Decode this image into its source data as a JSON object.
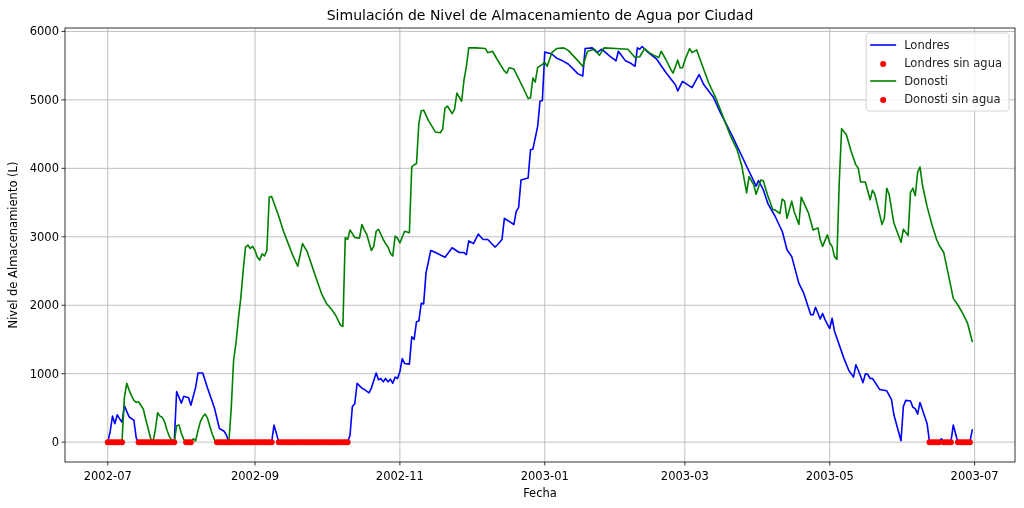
{
  "chart_data": {
    "type": "line",
    "title": "Simulación de Nivel de Almacenamiento de Agua por Ciudad",
    "xlabel": "Fecha",
    "ylabel": "Nivel de Almacenamiento (L)",
    "xlim": [
      "2002-06-13",
      "2003-07-18"
    ],
    "xticks": [
      "2002-07",
      "2002-09",
      "2002-11",
      "2003-01",
      "2003-03",
      "2003-05",
      "2003-07"
    ],
    "ylim": [
      -290,
      6050
    ],
    "yticks": [
      0,
      1000,
      2000,
      3000,
      4000,
      5000,
      6000
    ],
    "grid": true,
    "legend": "top right",
    "series": [
      {
        "name": "Londres",
        "color": "#0000ff",
        "x": [
          "2002-07-01",
          "2002-07-02",
          "2002-07-03",
          "2002-07-04",
          "2002-07-05",
          "2002-07-06",
          "2002-07-07",
          "2002-07-08",
          "2002-07-10",
          "2002-07-12",
          "2002-07-13",
          "2002-07-14",
          "2002-07-29",
          "2002-07-30",
          "2002-08-01",
          "2002-08-02",
          "2002-08-04",
          "2002-08-05",
          "2002-08-07",
          "2002-08-08",
          "2002-08-10",
          "2002-08-12",
          "2002-08-15",
          "2002-08-17",
          "2002-08-19",
          "2002-08-20",
          "2002-08-21",
          "2002-09-08",
          "2002-09-09",
          "2002-09-10",
          "2002-09-11",
          "2002-10-10",
          "2002-10-11",
          "2002-10-12",
          "2002-10-13",
          "2002-10-14",
          "2002-10-16",
          "2002-10-17",
          "2002-10-19",
          "2002-10-20",
          "2002-10-22",
          "2002-10-23",
          "2002-10-24",
          "2002-10-25",
          "2002-10-26",
          "2002-10-27",
          "2002-10-28",
          "2002-10-29",
          "2002-10-30",
          "2002-10-31",
          "2002-11-01",
          "2002-11-02",
          "2002-11-03",
          "2002-11-05",
          "2002-11-06",
          "2002-11-07",
          "2002-11-08",
          "2002-11-09",
          "2002-11-10",
          "2002-11-11",
          "2002-11-12",
          "2002-11-14",
          "2002-11-16",
          "2002-11-20",
          "2002-11-23",
          "2002-11-26",
          "2002-11-28",
          "2002-11-29",
          "2002-11-30",
          "2002-12-02",
          "2002-12-04",
          "2002-12-06",
          "2002-12-08",
          "2002-12-11",
          "2002-12-12",
          "2002-12-14",
          "2002-12-15",
          "2002-12-19",
          "2002-12-20",
          "2002-12-21",
          "2002-12-22",
          "2002-12-25",
          "2002-12-26",
          "2002-12-27",
          "2002-12-29",
          "2002-12-30",
          "2002-12-31",
          "2003-01-01",
          "2003-01-04",
          "2003-01-06",
          "2003-01-08",
          "2003-01-11",
          "2003-01-15",
          "2003-01-17",
          "2003-01-18",
          "2003-01-21",
          "2003-01-23",
          "2003-01-25",
          "2003-01-28",
          "2003-01-31",
          "2003-02-01",
          "2003-02-04",
          "2003-02-06",
          "2003-02-08",
          "2003-02-09",
          "2003-02-10",
          "2003-02-11",
          "2003-02-13",
          "2003-02-17",
          "2003-02-21",
          "2003-02-25",
          "2003-02-26",
          "2003-02-28",
          "2003-03-04",
          "2003-03-07",
          "2003-03-09",
          "2003-03-13",
          "2003-03-16",
          "2003-03-21",
          "2003-03-27",
          "2003-03-31",
          "2003-04-01",
          "2003-04-03",
          "2003-04-05",
          "2003-04-08",
          "2003-04-10",
          "2003-04-11",
          "2003-04-13",
          "2003-04-15",
          "2003-04-18",
          "2003-04-20",
          "2003-04-23",
          "2003-04-24",
          "2003-04-25",
          "2003-04-27",
          "2003-04-28",
          "2003-04-29",
          "2003-05-01",
          "2003-05-02",
          "2003-05-03",
          "2003-05-07",
          "2003-05-09",
          "2003-05-11",
          "2003-05-12",
          "2003-05-13",
          "2003-05-15",
          "2003-05-16",
          "2003-05-17",
          "2003-05-18",
          "2003-05-19",
          "2003-05-22",
          "2003-05-25",
          "2003-05-27",
          "2003-05-28",
          "2003-05-31",
          "2003-06-01",
          "2003-06-02",
          "2003-06-04",
          "2003-06-05",
          "2003-06-06",
          "2003-06-07",
          "2003-06-08",
          "2003-06-11",
          "2003-06-12",
          "2003-06-16",
          "2003-06-17",
          "2003-06-18",
          "2003-06-21",
          "2003-06-22",
          "2003-06-23",
          "2003-06-24",
          "2003-06-29",
          "2003-06-30"
        ],
        "values": [
          0,
          150,
          380,
          270,
          400,
          340,
          290,
          530,
          370,
          320,
          60,
          0,
          0,
          740,
          570,
          670,
          650,
          540,
          800,
          1010,
          1010,
          790,
          490,
          200,
          160,
          100,
          0,
          0,
          250,
          130,
          0,
          0,
          100,
          520,
          560,
          860,
          790,
          770,
          720,
          790,
          1010,
          910,
          930,
          880,
          930,
          880,
          920,
          860,
          950,
          930,
          1030,
          1220,
          1150,
          1140,
          1540,
          1500,
          1760,
          1770,
          2030,
          2020,
          2470,
          2800,
          2770,
          2700,
          2840,
          2770,
          2770,
          2740,
          2940,
          2900,
          3040,
          2960,
          2960,
          2850,
          2880,
          2960,
          3270,
          3180,
          3370,
          3430,
          3830,
          3860,
          4270,
          4280,
          4610,
          4980,
          4990,
          5700,
          5670,
          5610,
          5580,
          5520,
          5380,
          5350,
          5750,
          5760,
          5690,
          5740,
          5650,
          5570,
          5710,
          5570,
          5540,
          5490,
          5760,
          5740,
          5780,
          5710,
          5600,
          5400,
          5220,
          5130,
          5270,
          5180,
          5370,
          5220,
          5040,
          4810,
          4470,
          4030,
          3740,
          3820,
          3690,
          3480,
          3300,
          3150,
          3080,
          2810,
          2710,
          2320,
          2180,
          1860,
          1860,
          1970,
          1800,
          1880,
          1790,
          1660,
          1810,
          1620,
          1220,
          1050,
          950,
          1130,
          1050,
          870,
          1000,
          990,
          930,
          930,
          770,
          750,
          620,
          400,
          20,
          520,
          610,
          600,
          510,
          490,
          410,
          580,
          270,
          0,
          0,
          50,
          0,
          0,
          250,
          120,
          0,
          0,
          180
        ]
      },
      {
        "name": "Londres sin agua",
        "type": "scatter",
        "color": "#ff0000",
        "marker": "circle",
        "x": [
          "2002-07-14",
          "2002-07-15",
          "2002-07-16",
          "2002-07-17",
          "2002-07-18",
          "2002-07-19",
          "2002-07-21",
          "2002-07-22",
          "2002-07-23",
          "2002-07-24",
          "2002-07-25",
          "2002-07-26",
          "2002-07-27",
          "2002-07-28",
          "2002-08-22",
          "2002-08-23",
          "2002-08-24",
          "2002-08-25",
          "2002-08-26",
          "2002-08-27",
          "2002-08-28",
          "2002-08-29",
          "2002-08-30",
          "2002-08-31",
          "2002-09-01",
          "2002-09-02",
          "2002-09-03",
          "2002-09-04",
          "2002-09-05",
          "2002-09-06",
          "2002-09-07",
          "2002-09-08",
          "2002-09-11",
          "2002-09-12",
          "2002-09-13",
          "2002-09-14",
          "2002-09-15",
          "2002-09-16",
          "2002-09-17",
          "2002-09-18",
          "2002-09-19",
          "2002-09-20",
          "2002-09-21",
          "2002-09-22",
          "2002-09-23",
          "2002-09-24",
          "2002-09-25",
          "2002-09-26",
          "2002-09-27",
          "2002-09-28",
          "2002-09-29",
          "2002-09-30",
          "2002-10-01",
          "2002-10-02",
          "2002-10-03",
          "2002-10-04",
          "2002-10-05",
          "2002-10-06",
          "2002-10-07",
          "2002-10-08",
          "2002-10-09",
          "2002-10-10",
          "2003-06-12",
          "2003-06-13",
          "2003-06-14",
          "2003-06-15",
          "2003-06-16",
          "2003-06-18",
          "2003-06-19",
          "2003-06-20",
          "2003-06-21",
          "2003-06-24",
          "2003-06-25",
          "2003-06-26",
          "2003-06-27",
          "2003-06-28",
          "2003-06-29"
        ],
        "values": [
          0,
          0,
          0,
          0,
          0,
          0,
          0,
          0,
          0,
          0,
          0,
          0,
          0,
          0,
          0,
          0,
          0,
          0,
          0,
          0,
          0,
          0,
          0,
          0,
          0,
          0,
          0,
          0,
          0,
          0,
          0,
          0,
          0,
          0,
          0,
          0,
          0,
          0,
          0,
          0,
          0,
          0,
          0,
          0,
          0,
          0,
          0,
          0,
          0,
          0,
          0,
          0,
          0,
          0,
          0,
          0,
          0,
          0,
          0,
          0,
          0,
          0,
          0,
          0,
          0,
          0,
          0,
          0,
          0,
          0,
          0,
          0,
          0,
          0,
          0,
          0,
          0
        ]
      },
      {
        "name": "Donosti",
        "color": "#008000",
        "x": [
          "2002-07-01",
          "2002-07-07",
          "2002-07-08",
          "2002-07-09",
          "2002-07-10",
          "2002-07-11",
          "2002-07-12",
          "2002-07-13",
          "2002-07-14",
          "2002-07-16",
          "2002-07-17",
          "2002-07-18",
          "2002-07-19",
          "2002-07-20",
          "2002-07-21",
          "2002-07-22",
          "2002-07-23",
          "2002-07-24",
          "2002-07-25",
          "2002-07-26",
          "2002-07-27",
          "2002-07-28",
          "2002-07-29",
          "2002-07-30",
          "2002-07-31",
          "2002-08-01",
          "2002-08-02",
          "2002-08-03",
          "2002-08-05",
          "2002-08-06",
          "2002-08-07",
          "2002-08-08",
          "2002-08-09",
          "2002-08-10",
          "2002-08-11",
          "2002-08-12",
          "2002-08-13",
          "2002-08-14",
          "2002-08-15",
          "2002-08-16",
          "2002-08-21",
          "2002-08-22",
          "2002-08-23",
          "2002-08-24",
          "2002-08-25",
          "2002-08-26",
          "2002-08-27",
          "2002-08-28",
          "2002-08-29",
          "2002-08-30",
          "2002-08-31",
          "2002-09-01",
          "2002-09-02",
          "2002-09-03",
          "2002-09-04",
          "2002-09-05",
          "2002-09-06",
          "2002-09-07",
          "2002-09-08",
          "2002-09-11",
          "2002-09-13",
          "2002-09-15",
          "2002-09-17",
          "2002-09-19",
          "2002-09-21",
          "2002-09-23",
          "2002-09-26",
          "2002-09-29",
          "2002-10-01",
          "2002-10-03",
          "2002-10-05",
          "2002-10-07",
          "2002-10-08",
          "2002-10-09",
          "2002-10-10",
          "2002-10-11",
          "2002-10-13",
          "2002-10-15",
          "2002-10-16",
          "2002-10-17",
          "2002-10-18",
          "2002-10-20",
          "2002-10-21",
          "2002-10-22",
          "2002-10-23",
          "2002-10-25",
          "2002-10-26",
          "2002-10-27",
          "2002-10-28",
          "2002-10-29",
          "2002-10-30",
          "2002-10-31",
          "2002-11-01",
          "2002-11-03",
          "2002-11-05",
          "2002-11-06",
          "2002-11-07",
          "2002-11-08",
          "2002-11-09",
          "2002-11-10",
          "2002-11-11",
          "2002-11-13",
          "2002-11-16",
          "2002-11-18",
          "2002-11-19",
          "2002-11-20",
          "2002-11-21",
          "2002-11-23",
          "2002-11-24",
          "2002-11-25",
          "2002-11-27",
          "2002-11-28",
          "2002-11-29",
          "2002-11-30",
          "2002-12-03",
          "2002-12-07",
          "2002-12-08",
          "2002-12-10",
          "2002-12-12",
          "2002-12-15",
          "2002-12-16",
          "2002-12-17",
          "2002-12-19",
          "2002-12-21",
          "2002-12-23",
          "2002-12-25",
          "2002-12-26",
          "2002-12-27",
          "2002-12-28",
          "2002-12-29",
          "2002-12-31",
          "2003-01-01",
          "2003-01-02",
          "2003-01-04",
          "2003-01-06",
          "2003-01-09",
          "2003-01-11",
          "2003-01-15",
          "2003-01-17",
          "2003-01-19",
          "2003-01-22",
          "2003-01-24",
          "2003-01-26",
          "2003-01-31",
          "2003-02-05",
          "2003-02-07",
          "2003-02-08",
          "2003-02-10",
          "2003-02-12",
          "2003-02-14",
          "2003-02-16",
          "2003-02-18",
          "2003-02-19",
          "2003-02-21",
          "2003-02-23",
          "2003-02-24",
          "2003-02-26",
          "2003-02-27",
          "2003-02-28",
          "2003-03-01",
          "2003-03-03",
          "2003-03-04",
          "2003-03-06",
          "2003-03-07",
          "2003-03-09",
          "2003-03-11",
          "2003-03-14",
          "2003-03-17",
          "2003-03-20",
          "2003-03-23",
          "2003-03-25",
          "2003-03-27",
          "2003-03-28",
          "2003-03-30",
          "2003-03-31",
          "2003-04-02",
          "2003-04-03",
          "2003-04-05",
          "2003-04-07",
          "2003-04-08",
          "2003-04-10",
          "2003-04-11",
          "2003-04-12",
          "2003-04-13",
          "2003-04-15",
          "2003-04-16",
          "2003-04-18",
          "2003-04-19",
          "2003-04-22",
          "2003-04-24",
          "2003-04-26",
          "2003-04-27",
          "2003-04-28",
          "2003-04-30",
          "2003-05-01",
          "2003-05-02",
          "2003-05-03",
          "2003-05-04",
          "2003-05-05",
          "2003-05-06",
          "2003-05-08",
          "2003-05-10",
          "2003-05-12",
          "2003-05-13",
          "2003-05-14",
          "2003-05-16",
          "2003-05-18",
          "2003-05-19",
          "2003-05-20",
          "2003-05-23",
          "2003-05-24",
          "2003-05-25",
          "2003-05-26",
          "2003-05-28",
          "2003-05-31",
          "2003-06-01",
          "2003-06-03",
          "2003-06-04",
          "2003-06-05",
          "2003-06-06",
          "2003-06-07",
          "2003-06-08",
          "2003-06-09",
          "2003-06-11",
          "2003-06-13",
          "2003-06-15",
          "2003-06-16",
          "2003-06-18",
          "2003-06-20",
          "2003-06-22",
          "2003-06-24",
          "2003-06-26",
          "2003-06-28",
          "2003-06-30"
        ],
        "values": [
          0,
          0,
          650,
          860,
          760,
          680,
          610,
          580,
          590,
          480,
          330,
          200,
          60,
          0,
          170,
          430,
          380,
          360,
          290,
          170,
          80,
          30,
          0,
          240,
          250,
          130,
          40,
          0,
          0,
          50,
          20,
          170,
          300,
          370,
          410,
          350,
          230,
          120,
          30,
          0,
          0,
          500,
          1200,
          1450,
          1800,
          2100,
          2500,
          2850,
          2880,
          2830,
          2860,
          2800,
          2700,
          2660,
          2750,
          2720,
          2800,
          3580,
          3590,
          3300,
          3080,
          2900,
          2720,
          2570,
          2900,
          2780,
          2470,
          2170,
          2030,
          1950,
          1850,
          1710,
          1690,
          2990,
          2960,
          3100,
          2990,
          2980,
          3180,
          3100,
          3040,
          2800,
          2860,
          3080,
          3110,
          2960,
          2900,
          2850,
          2760,
          2720,
          3010,
          2980,
          2910,
          3080,
          3060,
          4020,
          4050,
          4070,
          4660,
          4840,
          4850,
          4700,
          4530,
          4520,
          4570,
          4880,
          4910,
          4800,
          4860,
          5100,
          4980,
          5290,
          5490,
          5760,
          5760,
          5750,
          5690,
          5710,
          5590,
          5420,
          5390,
          5470,
          5450,
          5310,
          5170,
          5020,
          5030,
          5320,
          5260,
          5470,
          5520,
          5550,
          5490,
          5690,
          5750,
          5760,
          5720,
          5570,
          5490,
          5710,
          5740,
          5650,
          5760,
          5750,
          5740,
          5660,
          5620,
          5630,
          5750,
          5690,
          5650,
          5620,
          5710,
          5590,
          5450,
          5390,
          5580,
          5470,
          5470,
          5580,
          5750,
          5690,
          5730,
          5630,
          5440,
          5250,
          5030,
          4760,
          4490,
          4270,
          4030,
          3640,
          3880,
          3760,
          3620,
          3830,
          3820,
          3590,
          3400,
          3390,
          3340,
          3550,
          3520,
          3270,
          3520,
          3370,
          3180,
          3580,
          3350,
          3100,
          3130,
          2960,
          2860,
          3030,
          2910,
          2860,
          2710,
          2670,
          3800,
          4580,
          4490,
          4250,
          4050,
          4000,
          3800,
          3800,
          3540,
          3680,
          3620,
          3180,
          3270,
          3710,
          3620,
          3200,
          2920,
          3110,
          3020,
          3650,
          3710,
          3600,
          3940,
          4020,
          3760,
          3440,
          3180,
          2960,
          2880,
          2770,
          2440,
          2100,
          2000,
          1880,
          1740,
          1470
        ]
      },
      {
        "name": "Donosti sin agua",
        "type": "scatter",
        "color": "#ff0000",
        "marker": "circle",
        "x": [
          "2002-07-01",
          "2002-07-02",
          "2002-07-03",
          "2002-07-04",
          "2002-07-05",
          "2002-07-06",
          "2002-07-07",
          "2002-07-20",
          "2002-07-29",
          "2002-08-03",
          "2002-08-04",
          "2002-08-05",
          "2002-08-16",
          "2002-08-17",
          "2002-08-18",
          "2002-08-19",
          "2002-08-20",
          "2002-08-21"
        ],
        "values": [
          0,
          0,
          0,
          0,
          0,
          0,
          0,
          0,
          0,
          0,
          0,
          0,
          0,
          0,
          0,
          0,
          0,
          0
        ]
      }
    ]
  }
}
